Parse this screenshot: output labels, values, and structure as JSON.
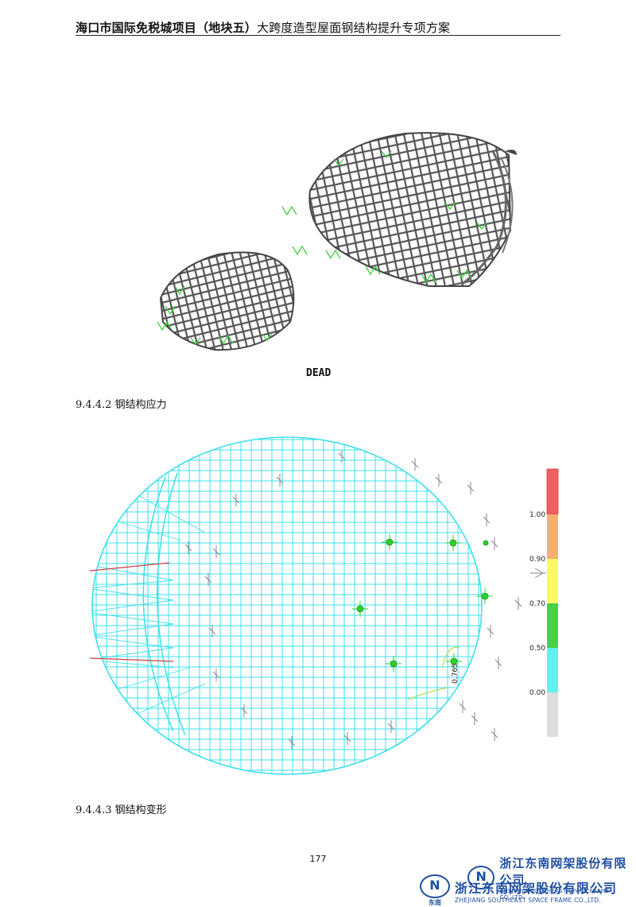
{
  "header": {
    "title_bold": "海口市国际免税城项目（地块五）",
    "title_rest": "大跨度造型屋面钢结构提升专项方案"
  },
  "figure1": {
    "caption": "DEAD"
  },
  "sections": {
    "stress": "9.4.4.2  钢结构应力",
    "deform": "9.4.4.3  钢结构变形"
  },
  "legend": {
    "ticks": [
      "1.00",
      "0.90",
      "0.70",
      "0.50",
      "0.00"
    ],
    "colors": [
      "#f06060",
      "#f5b070",
      "#fafa60",
      "#46d146",
      "#5ff0f0",
      "#dddddd"
    ]
  },
  "annotation": "0.765",
  "page_number": "177",
  "logos": [
    {
      "cn": "浙江东南网架股份有限公司",
      "en": "ZHEJIANG SOUTHEAST SPACE FRAME CO.,LTD.",
      "mark": "N"
    },
    {
      "cn": "浙江东南网架股份有限公司",
      "en": "ZHEJIANG SOUTHEAST SPACE FRAME CO.,LTD.",
      "mark": "N",
      "mark_label": "东南"
    }
  ]
}
